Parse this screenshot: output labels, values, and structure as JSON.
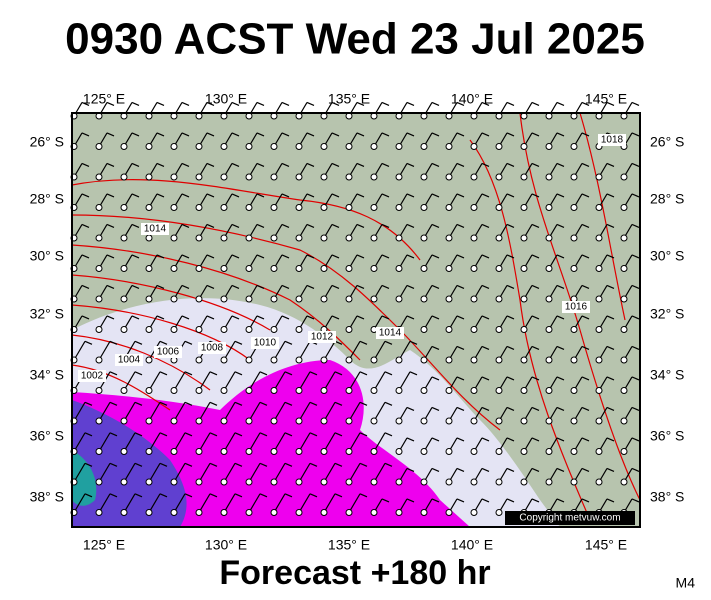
{
  "header": {
    "title": "0930 ACST Wed 23 Jul 2025"
  },
  "map": {
    "lon_labels": [
      "125° E",
      "130° E",
      "135° E",
      "140° E",
      "145° E"
    ],
    "lat_labels": [
      "26° S",
      "28° S",
      "30° S",
      "32° S",
      "34° S",
      "36° S",
      "38° S"
    ],
    "isobar_labels": [
      "1014",
      "1002",
      "1004",
      "1006",
      "1008",
      "1010",
      "1012",
      "1014",
      "1016",
      "1018"
    ],
    "copyright": "Copyright metvuw.com"
  },
  "footer": {
    "forecast": "Forecast +180 hr",
    "code": "M4"
  }
}
